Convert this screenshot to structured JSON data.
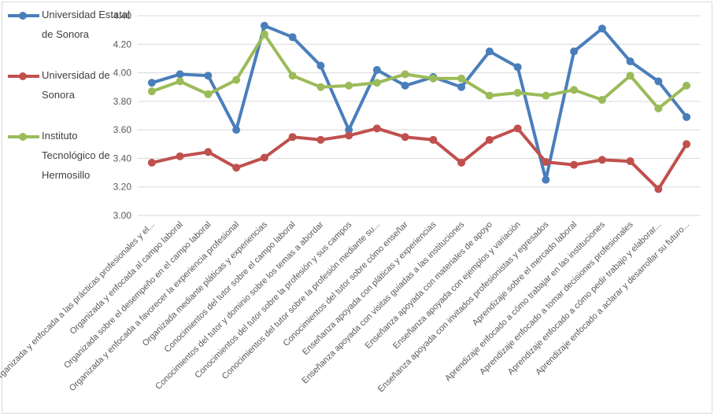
{
  "chart_data": {
    "type": "line",
    "title": "",
    "xlabel": "",
    "ylabel": "",
    "ylim": [
      3.0,
      4.4
    ],
    "yticks": [
      3.0,
      3.2,
      3.4,
      3.6,
      3.8,
      4.0,
      4.2,
      4.4
    ],
    "grid": true,
    "legend_position": "left",
    "categories": [
      "Organizada y enfocada a las prácticas profesionales y el...",
      "Organizada y enfocada al campo laboral",
      "Organizada sobre el desempeño en el campo laboral",
      "Organizada y enfocada a favorecer la experiencia profesional",
      "Organizada mediante pláticas y experiencias",
      "Conocimientos del tutor sobre el campo laboral",
      "Conocimientos del tutor y dominio sobre los temas a abordar",
      "Conocimientos del tutor sobre la profesión y sus campos",
      "Conocimientos del tutor sobre la profesión mediante su...",
      "Conocimientos del tutor sobre cómo enseñar",
      "Enseñanza apoyada con pláticas y experiencias",
      "Enseñanza apoyada con visitas guiadas a las instituciones",
      "Enseñanza apoyada con materiales de apoyo",
      "Enseñanza apoyada con ejemplos y variación",
      "Enseñanza apoyada con invitados profesionistas y egresados",
      "Aprendizaje sobre el mercado laboral",
      "Aprendizaje enfocado a cómo trabajar en las instituciones",
      "Aprendizaje enfocado a tomar decisiones profesionales",
      "Aprendizaje enfocado a cómo pedir trabajo y elaborar...",
      "Aprendizaje enfocado a aclarar y desarrollar su futuro..."
    ],
    "series": [
      {
        "name": "Universidad Estatal de Sonora",
        "name_lines": [
          "Universidad Estatal",
          "de Sonora"
        ],
        "color": "#4a7ebb",
        "values": [
          3.93,
          3.99,
          3.98,
          3.6,
          4.33,
          4.25,
          4.05,
          3.6,
          4.02,
          3.91,
          3.97,
          3.9,
          4.15,
          4.04,
          3.25,
          4.15,
          4.31,
          4.08,
          3.94,
          3.69
        ]
      },
      {
        "name": "Universidad de Sonora",
        "name_lines": [
          "Universidad de",
          "Sonora"
        ],
        "color": "#c0504d",
        "values": [
          3.37,
          3.415,
          3.445,
          3.335,
          3.405,
          3.55,
          3.53,
          3.56,
          3.61,
          3.55,
          3.53,
          3.37,
          3.53,
          3.61,
          3.375,
          3.355,
          3.39,
          3.38,
          3.185,
          3.5
        ]
      },
      {
        "name": "Instituto Tecnológico de Hermosillo",
        "name_lines": [
          "Instituto",
          "Tecnológico de",
          "Hermosillo"
        ],
        "color": "#9bbb59",
        "values": [
          3.87,
          3.94,
          3.85,
          3.95,
          4.27,
          3.98,
          3.9,
          3.91,
          3.93,
          3.99,
          3.96,
          3.96,
          3.84,
          3.86,
          3.84,
          3.88,
          3.81,
          3.98,
          3.75,
          3.91
        ]
      }
    ]
  }
}
